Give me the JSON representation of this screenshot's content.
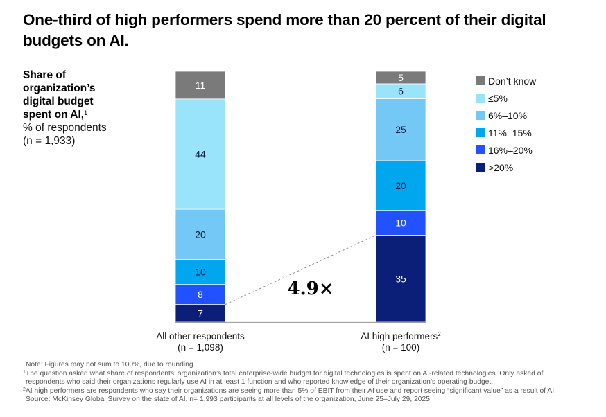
{
  "title": "One-third of high performers spend more than 20 percent of their digital budgets on AI.",
  "y_label": {
    "bold_lines": [
      "Share of",
      "organization’s",
      "digital budget",
      "spent on AI,"
    ],
    "footnote_mark": "1",
    "lines": [
      "% of respondents",
      "(n = 1,933)"
    ]
  },
  "legend": [
    {
      "label": "Don’t know",
      "color": "#7a7a7a"
    },
    {
      "label": "≤5%",
      "color": "#99e3fb"
    },
    {
      "label": "6%–10%",
      "color": "#74c8f5"
    },
    {
      "label": "11%–15%",
      "color": "#00a6ee"
    },
    {
      "label": "16%–20%",
      "color": "#2251ff"
    },
    {
      "label": ">20%",
      "color": "#0b1f78"
    }
  ],
  "annotation": "4.9×",
  "notes": {
    "note": "Note: Figures may not sum to 100%, due to rounding.",
    "fn1_mark": "1",
    "fn1_line1": "The question asked what share of respondents’ organization’s total enterprise-wide budget for digital technologies is spent on AI-related technologies. Only asked of",
    "fn1_line2": "respondents who said their organizations regularly use AI in at least 1 function and who reported knowledge of their organization’s operating budget.",
    "fn2_mark": "2",
    "fn2_line": "AI high performers are respondents who say their organizations are seeing more than 5% of EBIT from their AI use and report seeing “significant value” as a result of AI.",
    "source": "Source: McKinsey Global Survey on the state of AI, n= 1,993 participants at all levels of the organization, June 25–July 29, 2025"
  },
  "chart_data": {
    "type": "bar",
    "stacked": true,
    "title": "One-third of high performers spend more than 20 percent of their digital budgets on AI.",
    "ylabel": "Share of organization’s digital budget spent on AI, % of respondents (n = 1,933)",
    "xlabel": "",
    "categories": [
      "All other respondents",
      "AI high performers"
    ],
    "category_sublabels": [
      "(n = 1,098)",
      "(n = 100)"
    ],
    "category_footnotes": [
      "",
      "2"
    ],
    "series": [
      {
        "name": ">20%",
        "color": "#0b1f78",
        "label_color": "#ffffff",
        "values": [
          7,
          35
        ]
      },
      {
        "name": "16%–20%",
        "color": "#2251ff",
        "label_color": "#ffffff",
        "values": [
          8,
          10
        ]
      },
      {
        "name": "11%–15%",
        "color": "#00a6ee",
        "label_color": "#0b1a3a",
        "values": [
          10,
          20
        ]
      },
      {
        "name": "6%–10%",
        "color": "#74c8f5",
        "label_color": "#0b1a3a",
        "values": [
          20,
          25
        ]
      },
      {
        "name": "≤5%",
        "color": "#99e3fb",
        "label_color": "#0b1a3a",
        "values": [
          44,
          6
        ]
      },
      {
        "name": "Don’t know",
        "color": "#7a7a7a",
        "label_color": "#ffffff",
        "values": [
          11,
          5
        ]
      }
    ],
    "ylim": [
      0,
      100
    ],
    "grid": false,
    "legend_position": "top-right",
    "annotation": {
      "text": "4.9×",
      "compares": ">20%",
      "from": 7,
      "to": 35
    }
  }
}
